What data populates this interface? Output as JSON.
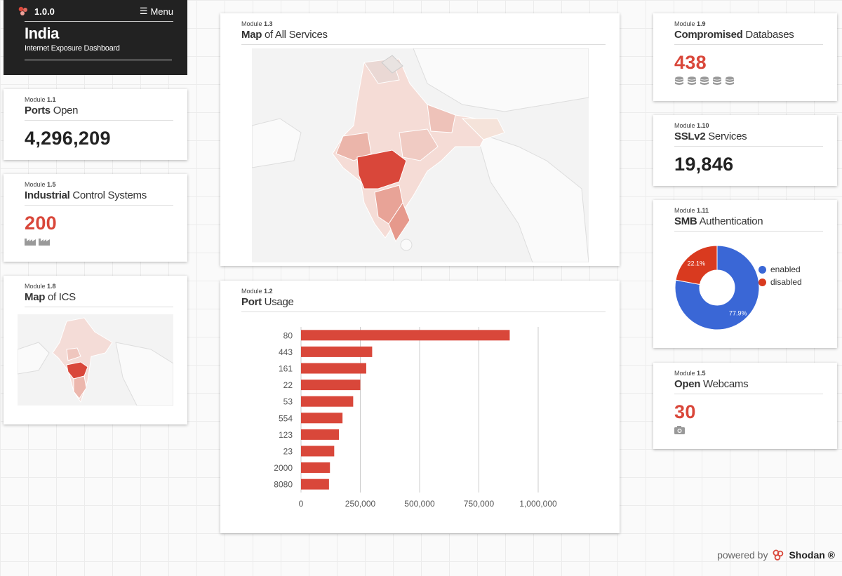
{
  "header": {
    "version": "1.0.0",
    "menu_label": "Menu",
    "country": "India",
    "subtitle": "Internet Exposure Dashboard"
  },
  "ports_open": {
    "module": "1.1",
    "title_bold": "Ports",
    "title_rest": " Open",
    "value": "4,296,209"
  },
  "ics": {
    "module": "1.5",
    "title_bold": "Industrial",
    "title_rest": " Control Systems",
    "value": "200",
    "icon_count": 2,
    "icon": "factory-icon",
    "color": "#d9473a"
  },
  "map_ics": {
    "module": "1.8",
    "title_bold": "Map",
    "title_rest": " of ICS"
  },
  "map_all": {
    "module": "1.3",
    "title_bold": "Map",
    "title_rest": " of All Services"
  },
  "port_usage": {
    "module": "1.2",
    "title_bold": "Port",
    "title_rest": " Usage"
  },
  "compromised_db": {
    "module": "1.9",
    "title_bold": "Compromised",
    "title_rest": " Databases",
    "value": "438",
    "icon_count": 5,
    "icon": "database-icon",
    "color": "#d9473a"
  },
  "sslv2": {
    "module": "1.10",
    "title_bold": "SSLv2",
    "title_rest": " Services",
    "value": "19,846"
  },
  "smb": {
    "module": "1.11",
    "title_bold": "SMB",
    "title_rest": " Authentication"
  },
  "webcams": {
    "module": "1.5",
    "title_bold": "Open",
    "title_rest": " Webcams",
    "value": "30",
    "icon": "camera-icon",
    "color": "#d9473a"
  },
  "footer": {
    "prefix": "powered by",
    "brand": "Shodan ®"
  },
  "chart_data": [
    {
      "type": "bar",
      "orientation": "horizontal",
      "categories": [
        "80",
        "443",
        "161",
        "22",
        "53",
        "554",
        "123",
        "23",
        "2000",
        "8080"
      ],
      "values": [
        880000,
        300000,
        275000,
        250000,
        220000,
        175000,
        160000,
        140000,
        122000,
        118000
      ],
      "xlim": [
        0,
        1000000
      ],
      "xticks": [
        "0",
        "250,000",
        "500,000",
        "750,000",
        "1,000,000"
      ],
      "grid": true,
      "bar_color": "#d9473a"
    },
    {
      "type": "pie",
      "donut": true,
      "labels": [
        "enabled",
        "disabled"
      ],
      "values": [
        77.9,
        22.1
      ],
      "value_labels": [
        "77.9%",
        "22.1%"
      ],
      "colors": [
        "#3a67d6",
        "#d93a1f"
      ],
      "legend_placement": "right"
    }
  ]
}
